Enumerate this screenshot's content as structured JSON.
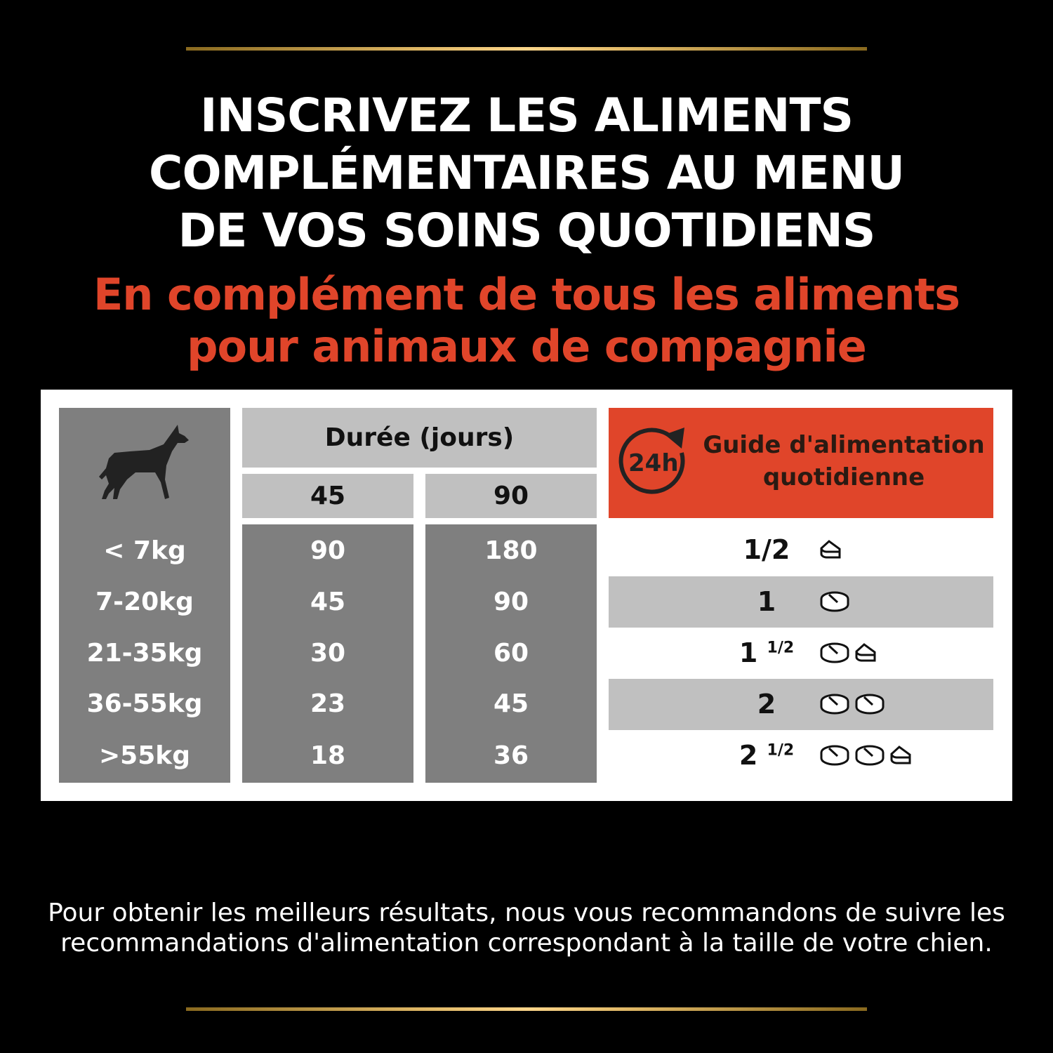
{
  "header": {
    "title_lines": [
      "INSCRIVEZ LES ALIMENTS",
      "COMPLÉMENTAIRES AU MENU",
      "DE VOS SOINS QUOTIDIENS"
    ],
    "subtitle_lines": [
      "En complément de tous les aliments",
      "pour animaux de compagnie"
    ]
  },
  "table": {
    "duration_header": "Durée (jours)",
    "durations": [
      "45",
      "90"
    ],
    "weights": [
      "< 7kg",
      "7-20kg",
      "21-35kg",
      "36-55kg",
      ">55kg"
    ],
    "col45": [
      "90",
      "45",
      "30",
      "23",
      "18"
    ],
    "col90": [
      "180",
      "90",
      "60",
      "45",
      "36"
    ],
    "guide_title_1": "Guide d'alimentation",
    "guide_title_2": "quotidienne",
    "guide_icon_text": "24h",
    "doses": [
      {
        "whole": "1/2",
        "frac": "",
        "full": 0,
        "half": 1
      },
      {
        "whole": "1",
        "frac": "",
        "full": 1,
        "half": 0
      },
      {
        "whole": "1",
        "frac": "1/2",
        "full": 1,
        "half": 1
      },
      {
        "whole": "2",
        "frac": "",
        "full": 2,
        "half": 0
      },
      {
        "whole": "2",
        "frac": "1/2",
        "full": 2,
        "half": 1
      }
    ],
    "colors": {
      "orange": "#e0452a",
      "dark_gray": "#7f7f7f",
      "light_gray": "#c0c0c0"
    }
  },
  "footer": {
    "line1": "Pour obtenir les meilleurs résultats, nous vous recommandons de suivre les",
    "line2": "recommandations d'alimentation correspondant à la taille de votre chien."
  }
}
